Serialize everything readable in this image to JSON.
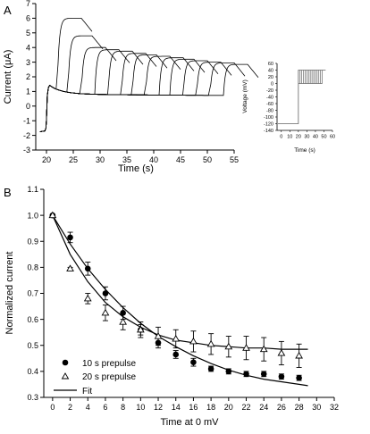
{
  "figure": {
    "panel_a_label": "A",
    "panel_b_label": "B"
  },
  "chart_data": [
    {
      "id": "panel-a-currents",
      "type": "line",
      "title": "",
      "xlabel": "Time (s)",
      "ylabel": "Current (μA)",
      "xlim": [
        18,
        55
      ],
      "ylim": [
        -3,
        7
      ],
      "xticks": [
        "20",
        "25",
        "30",
        "35",
        "40",
        "45",
        "50",
        "55"
      ],
      "yticks": [
        "-3",
        "-2",
        "-1",
        "0",
        "1",
        "2",
        "3",
        "4",
        "5",
        "6",
        "7"
      ],
      "grid": false,
      "pre_step_current": -1.7,
      "step_time": 20,
      "steady_current": 0.7,
      "traces": [
        {
          "end_time": 22,
          "peak_current": 6.0
        },
        {
          "end_time": 24,
          "peak_current": 4.8
        },
        {
          "end_time": 26.5,
          "peak_current": 4.0
        },
        {
          "end_time": 29,
          "peak_current": 3.85
        },
        {
          "end_time": 31.5,
          "peak_current": 3.75
        },
        {
          "end_time": 34,
          "peak_current": 3.6
        },
        {
          "end_time": 36,
          "peak_current": 3.5
        },
        {
          "end_time": 38.5,
          "peak_current": 3.4
        },
        {
          "end_time": 41,
          "peak_current": 3.3
        },
        {
          "end_time": 43,
          "peak_current": 3.2
        },
        {
          "end_time": 45.5,
          "peak_current": 3.1
        },
        {
          "end_time": 48,
          "peak_current": 3.0
        },
        {
          "end_time": 50.5,
          "peak_current": 2.95
        },
        {
          "end_time": 53,
          "peak_current": 2.85
        }
      ]
    },
    {
      "id": "panel-a-protocol",
      "type": "line",
      "title": "",
      "xlabel": "Time (s)",
      "ylabel": "Voltage (mV)",
      "xlim": [
        -5,
        60
      ],
      "ylim": [
        -140,
        60
      ],
      "xticks": [
        "0",
        "10",
        "20",
        "30",
        "40",
        "50",
        "60"
      ],
      "yticks": [
        "-140",
        "-120",
        "-100",
        "-80",
        "-60",
        "-40",
        "-20",
        "0",
        "20",
        "40",
        "60"
      ],
      "grid": false,
      "holding_voltage": -120,
      "step_time": 20,
      "step_voltage": 40,
      "prepulse_voltage": 0,
      "prepulse_end_times": [
        22,
        24,
        26,
        28,
        30,
        32,
        34,
        36,
        38,
        40,
        42,
        44,
        46,
        48
      ],
      "protocol_end_time": 52
    },
    {
      "id": "panel-b-inactivation",
      "type": "scatter",
      "title": "",
      "xlabel": "Time at 0 mV",
      "ylabel": "Normalized current",
      "xlim": [
        -1,
        32
      ],
      "ylim": [
        0.3,
        1.1
      ],
      "xticks": [
        "0",
        "2",
        "4",
        "6",
        "8",
        "10",
        "12",
        "14",
        "16",
        "18",
        "20",
        "22",
        "24",
        "26",
        "28",
        "30",
        "32"
      ],
      "yticks": [
        "0.3",
        "0.4",
        "0.5",
        "0.6",
        "0.7",
        "0.8",
        "0.9",
        "1.0",
        "1.1"
      ],
      "grid": false,
      "legend_position": "bottom-left",
      "series": [
        {
          "name": "10 s prepulse",
          "marker": "filled-circle",
          "x": [
            0,
            2,
            4,
            6,
            8,
            10,
            12,
            14,
            16,
            18,
            20,
            22,
            24,
            26,
            28
          ],
          "y": [
            1.0,
            0.915,
            0.795,
            0.7,
            0.625,
            0.56,
            0.51,
            0.465,
            0.435,
            0.41,
            0.4,
            0.39,
            0.39,
            0.38,
            0.375
          ],
          "err": [
            0.0,
            0.02,
            0.025,
            0.025,
            0.025,
            0.02,
            0.02,
            0.015,
            0.015,
            0.01,
            0.01,
            0.01,
            0.01,
            0.01,
            0.01
          ]
        },
        {
          "name": "20 s prepulse",
          "marker": "open-triangle",
          "x": [
            0,
            2,
            4,
            6,
            8,
            10,
            12,
            14,
            16,
            18,
            20,
            22,
            24,
            26,
            28
          ],
          "y": [
            1.0,
            0.795,
            0.68,
            0.625,
            0.59,
            0.56,
            0.535,
            0.525,
            0.515,
            0.505,
            0.495,
            0.49,
            0.485,
            0.47,
            0.46
          ],
          "err": [
            0.0,
            0.005,
            0.02,
            0.03,
            0.03,
            0.03,
            0.035,
            0.035,
            0.04,
            0.04,
            0.04,
            0.045,
            0.045,
            0.045,
            0.045
          ]
        }
      ],
      "fits": [
        {
          "name": "Fit",
          "x": [
            0,
            2,
            4,
            6,
            8,
            10,
            12,
            14,
            16,
            18,
            20,
            22,
            24,
            26,
            28,
            29
          ],
          "y": [
            1.0,
            0.89,
            0.795,
            0.715,
            0.645,
            0.585,
            0.535,
            0.495,
            0.46,
            0.43,
            0.405,
            0.385,
            0.37,
            0.36,
            0.35,
            0.345
          ]
        },
        {
          "name": "Fit",
          "x": [
            0,
            2,
            4,
            6,
            8,
            10,
            12,
            14,
            16,
            18,
            20,
            22,
            24,
            26,
            28,
            29
          ],
          "y": [
            1.0,
            0.85,
            0.745,
            0.665,
            0.61,
            0.57,
            0.54,
            0.52,
            0.51,
            0.5,
            0.495,
            0.49,
            0.49,
            0.485,
            0.485,
            0.485
          ]
        }
      ],
      "legend": {
        "items": [
          "10 s prepulse",
          "20 s prepulse",
          "Fit"
        ]
      }
    }
  ]
}
